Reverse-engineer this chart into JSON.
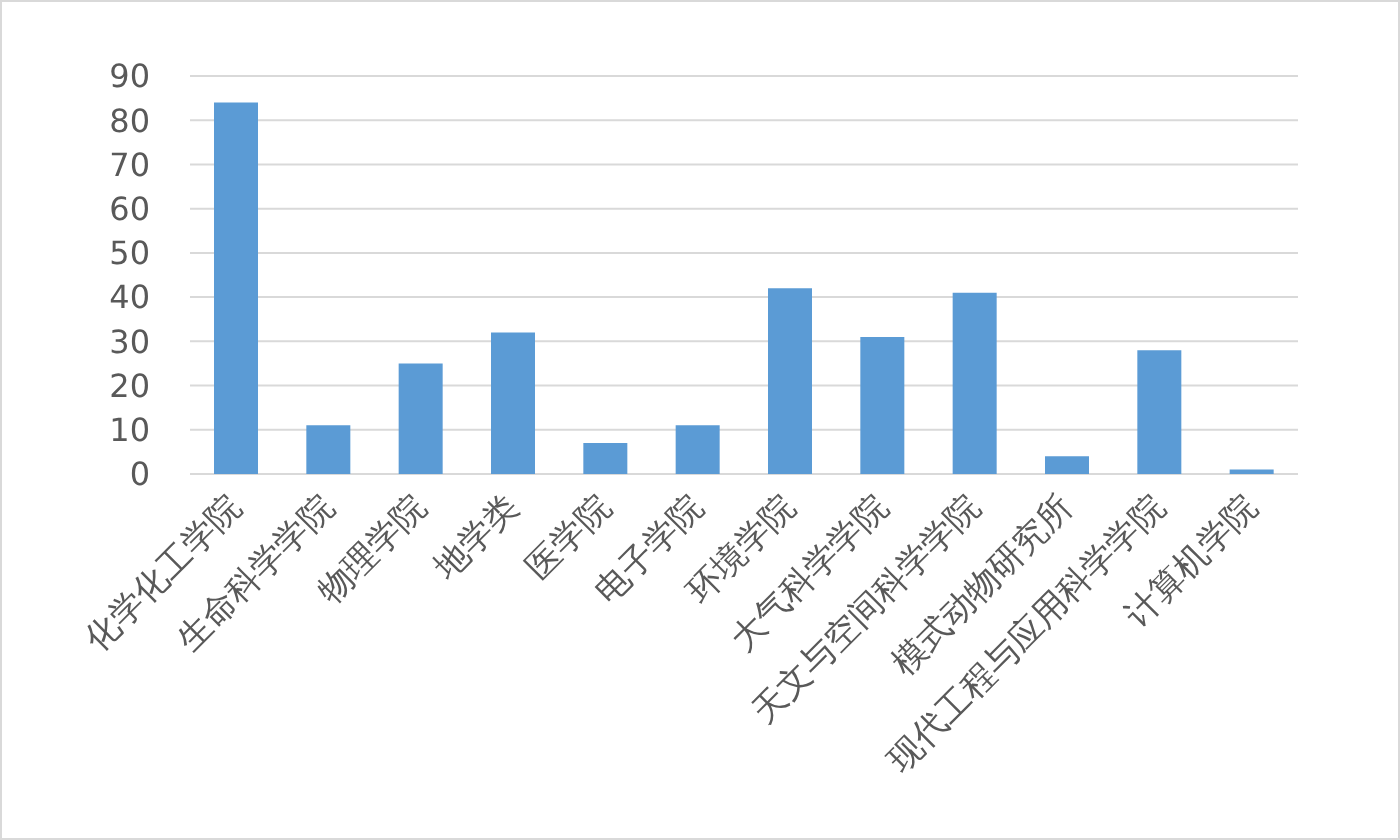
{
  "chart_data": {
    "type": "bar",
    "categories": [
      "化学化工学院",
      "生命科学学院",
      "物理学院",
      "地学类",
      "医学院",
      "电子学院",
      "环境学院",
      "大气科学学院",
      "天文与空间科学学院",
      "模式动物研究所",
      "现代工程与应用科学学院",
      "计算机学院"
    ],
    "values": [
      84,
      11,
      25,
      32,
      7,
      11,
      42,
      31,
      41,
      4,
      28,
      1
    ],
    "color": "#5b9bd5",
    "ylim": [
      0,
      90
    ],
    "yticks": [
      0,
      10,
      20,
      30,
      40,
      50,
      60,
      70,
      80,
      90
    ],
    "grid": "y"
  }
}
